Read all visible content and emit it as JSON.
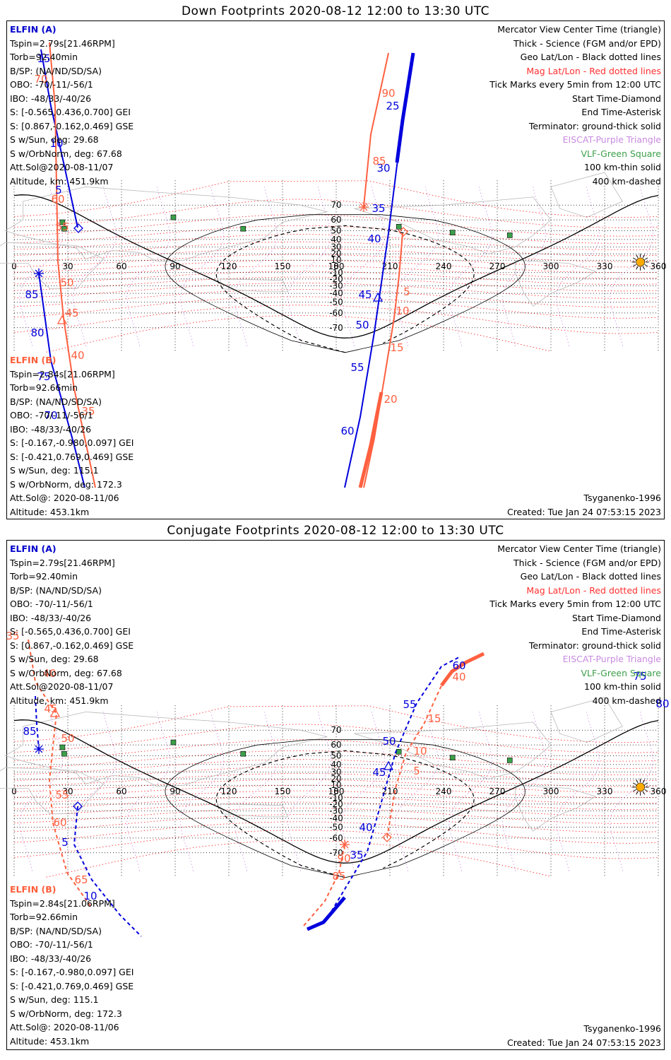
{
  "panels": [
    {
      "title": "Down Footprints 2020-08-12 12:00 to 13:30 UTC",
      "elfin_a": {
        "label": "ELFIN (A)",
        "lines": [
          "Tspin=2.79s[21.46RPM]",
          "Torb=92.40min",
          "B/SP: (NA/ND/SD/SA)",
          "OBO: -70/-11/-56/1",
          "IBO: -48/33/-40/26",
          "S: [-0.565,0.436,0.700] GEI",
          "S: [0.867,-0.162,0.469] GSE",
          "S w/Sun, deg: 29.68",
          "S w/OrbNorm, deg: 67.68",
          "Att.Sol@2020-08-11/07",
          "Altitude, km: 451.9km"
        ]
      },
      "elfin_b": {
        "label": "ELFIN (B)",
        "lines": [
          "Tspin=2.84s[21.06RPM]",
          "Torb=92.66min",
          "B/SP: (NA/ND/SD/SA)",
          "OBO: -70/-11/-56/1",
          "IBO: -48/33/-40/26",
          "S: [-0.167,-0.980,0.097] GEI",
          "S: [-0.421,0.769,0.469] GSE",
          "S w/Sun, deg: 115.1",
          "S w/OrbNorm, deg: 172.3",
          "Att.Sol@: 2020-08-11/06",
          "Altitude: 453.1km"
        ]
      },
      "legend": [
        {
          "text": "Mercator View Center Time (triangle)",
          "color": "#000000"
        },
        {
          "text": "Thick - Science (FGM and/or EPD)",
          "color": "#000000"
        },
        {
          "text": "Geo Lat/Lon - Black dotted lines",
          "color": "#000000"
        },
        {
          "text": "Mag Lat/Lon - Red dotted lines",
          "color": "#ff3030"
        },
        {
          "text": "Tick Marks every 5min from 12:00 UTC",
          "color": "#000000"
        },
        {
          "text": "Start Time-Diamond",
          "color": "#000000"
        },
        {
          "text": "End Time-Asterisk",
          "color": "#000000"
        },
        {
          "text": "Terminator: ground-thick solid",
          "color": "#000000"
        },
        {
          "text": "EISCAT-Purple Triangle",
          "color": "#c98be0"
        },
        {
          "text": "VLF-Green Square",
          "color": "#3ca04a"
        },
        {
          "text": "100 km-thin solid",
          "color": "#000000"
        },
        {
          "text": "400 km-dashed",
          "color": "#000000"
        }
      ],
      "model": "Tsyganenko-1996",
      "created": "Created: Tue Jan 24 07:53:15 2023",
      "lat_labels": [
        "70",
        "60",
        "50",
        "40",
        "30",
        "20",
        "10",
        "0",
        "-10",
        "-20",
        "-30",
        "-40",
        "-50",
        "-60",
        "-70"
      ],
      "lon_labels": [
        "0",
        "30",
        "60",
        "90",
        "120",
        "150",
        "180",
        "210",
        "240",
        "270",
        "300",
        "330",
        "360"
      ],
      "tick_labels_a": [
        "15",
        "10",
        "5",
        "85",
        "80",
        "75",
        "70",
        "25",
        "30",
        "35",
        "40",
        "45",
        "50",
        "55",
        "60"
      ],
      "tick_labels_b": [
        "70",
        "60",
        "55",
        "50",
        "45",
        "40",
        "35",
        "90",
        "85",
        "5",
        "10",
        "15",
        "20"
      ]
    },
    {
      "title": "Conjugate Footprints 2020-08-12 12:00 to 13:30 UTC",
      "elfin_a": {
        "label": "ELFIN (A)",
        "lines": [
          "Tspin=2.79s[21.46RPM]",
          "Torb=92.40min",
          "B/SP: (NA/ND/SD/SA)",
          "OBO: -70/-11/-56/1",
          "IBO: -48/33/-40/26",
          "S: [-0.565,0.436,0.700] GEI",
          "S: [0.867,-0.162,0.469] GSE",
          "S w/Sun, deg: 29.68",
          "S w/OrbNorm, deg: 67.68",
          "Att.Sol@2020-08-11/07",
          "Altitude, km: 451.9km"
        ]
      },
      "elfin_b": {
        "label": "ELFIN (B)",
        "lines": [
          "Tspin=2.84s[21.06RPM]",
          "Torb=92.66min",
          "B/SP: (NA/ND/SD/SA)",
          "OBO: -70/-11/-56/1",
          "IBO: -48/33/-40/26",
          "S: [-0.167,-0.980,0.097] GEI",
          "S: [-0.421,0.769,0.469] GSE",
          "S w/Sun, deg: 115.1",
          "S w/OrbNorm, deg: 172.3",
          "Att.Sol@: 2020-08-11/06",
          "Altitude: 453.1km"
        ]
      },
      "legend": [
        {
          "text": "Mercator View Center Time (triangle)",
          "color": "#000000"
        },
        {
          "text": "Thick - Science (FGM and/or EPD)",
          "color": "#000000"
        },
        {
          "text": "Geo Lat/Lon - Black dotted lines",
          "color": "#000000"
        },
        {
          "text": "Mag Lat/Lon - Red dotted lines",
          "color": "#ff3030"
        },
        {
          "text": "Tick Marks every 5min from 12:00 UTC",
          "color": "#000000"
        },
        {
          "text": "Start Time-Diamond",
          "color": "#000000"
        },
        {
          "text": "End Time-Asterisk",
          "color": "#000000"
        },
        {
          "text": "Terminator: ground-thick solid",
          "color": "#000000"
        },
        {
          "text": "EISCAT-Purple Triangle",
          "color": "#c98be0"
        },
        {
          "text": "VLF-Green Square",
          "color": "#3ca04a"
        },
        {
          "text": "100 km-thin solid",
          "color": "#000000"
        },
        {
          "text": "400 km-dashed",
          "color": "#000000"
        }
      ],
      "model": "Tsyganenko-1996",
      "created": "Created: Tue Jan 24 07:53:15 2023",
      "lat_labels": [
        "70",
        "60",
        "50",
        "40",
        "30",
        "20",
        "10",
        "0",
        "-10",
        "-20",
        "-30",
        "-40",
        "-50",
        "-60",
        "-70"
      ],
      "lon_labels": [
        "0",
        "30",
        "60",
        "90",
        "120",
        "150",
        "180",
        "210",
        "240",
        "270",
        "300",
        "330",
        "360"
      ],
      "tick_labels_a": [
        "85",
        "5",
        "10",
        "35",
        "40",
        "45",
        "50",
        "55",
        "60",
        "75",
        "80"
      ],
      "tick_labels_b": [
        "35",
        "40",
        "45",
        "50",
        "55",
        "60",
        "65",
        "85",
        "90",
        "5",
        "10",
        "15",
        "40"
      ]
    }
  ],
  "colors": {
    "elfin_a": "#0000dd",
    "elfin_b": "#ff6040",
    "grid": "#000000",
    "mag": "#ff2020",
    "eiscat": "#c98be0",
    "vlf": "#3ca04a",
    "sun": "#ffaa00"
  }
}
